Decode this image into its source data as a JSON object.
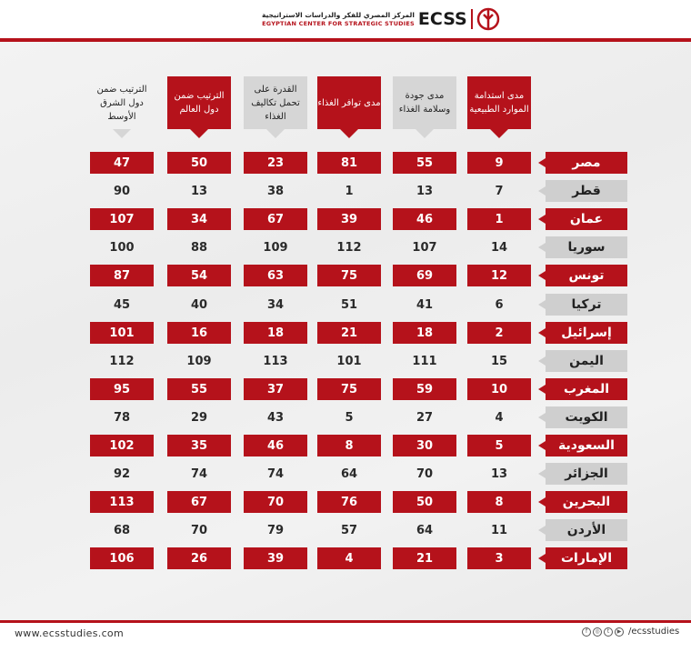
{
  "header": {
    "brand": "ECSS",
    "name_ar": "المركز المصري للفكر والدراسات الاستراتيجية",
    "name_en": "EGYPTIAN CENTER FOR STRATEGIC STUDIES"
  },
  "footer": {
    "website": "www.ecsstudies.com",
    "social_handle": "/ecsstudies",
    "social_icons": [
      "facebook-icon",
      "instagram-icon",
      "twitter-icon",
      "youtube-icon"
    ]
  },
  "colors": {
    "accent": "#b5121b",
    "gray": "#d6d6d6"
  },
  "chart_data": {
    "type": "table",
    "columns": [
      "الترتيب ضمن دول الشرق الأوسط",
      "الترتيب ضمن دول العالم",
      "القدرة على تحمل تكاليف الغذاء",
      "مدى توافر الغذاء",
      "مدى جودة وسلامة الغذاء",
      "مدى استدامة الموارد الطبيعية"
    ],
    "rows": [
      {
        "country": "مصر",
        "values": [
          47,
          50,
          23,
          81,
          55,
          9
        ]
      },
      {
        "country": "قطر",
        "values": [
          90,
          13,
          38,
          1,
          13,
          7
        ]
      },
      {
        "country": "عمان",
        "values": [
          107,
          34,
          67,
          39,
          46,
          1
        ]
      },
      {
        "country": "سوريا",
        "values": [
          100,
          88,
          109,
          112,
          107,
          14
        ]
      },
      {
        "country": "تونس",
        "values": [
          87,
          54,
          63,
          75,
          69,
          12
        ]
      },
      {
        "country": "تركيا",
        "values": [
          45,
          40,
          34,
          51,
          41,
          6
        ]
      },
      {
        "country": "إسرائيل",
        "values": [
          101,
          16,
          18,
          21,
          18,
          2
        ]
      },
      {
        "country": "اليمن",
        "values": [
          112,
          109,
          113,
          101,
          111,
          15
        ]
      },
      {
        "country": "المغرب",
        "values": [
          95,
          55,
          37,
          75,
          59,
          10
        ]
      },
      {
        "country": "الكويت",
        "values": [
          78,
          29,
          43,
          5,
          27,
          4
        ]
      },
      {
        "country": "السعودية",
        "values": [
          102,
          35,
          46,
          8,
          30,
          5
        ]
      },
      {
        "country": "الجزائر",
        "values": [
          92,
          74,
          74,
          64,
          70,
          13
        ]
      },
      {
        "country": "البحرين",
        "values": [
          113,
          67,
          70,
          76,
          50,
          8
        ]
      },
      {
        "country": "الأردن",
        "values": [
          68,
          70,
          79,
          57,
          64,
          11
        ]
      },
      {
        "country": "الإمارات",
        "values": [
          106,
          26,
          39,
          4,
          21,
          3
        ]
      }
    ]
  }
}
